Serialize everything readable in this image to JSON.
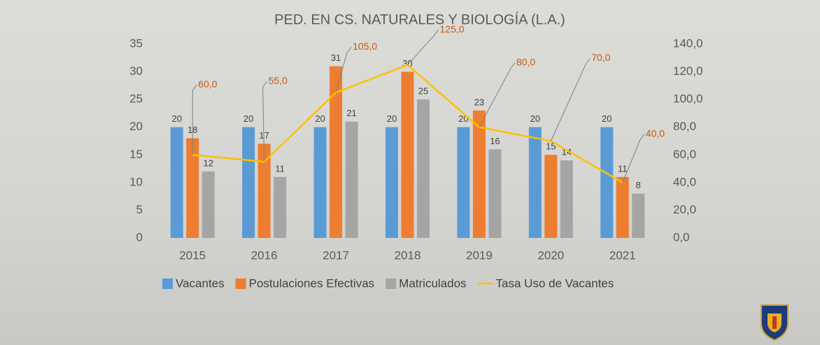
{
  "chart_data": {
    "type": "bar",
    "title": "PED. EN CS. NATURALES Y BIOLOGÍA (L.A.)",
    "categories": [
      "2015",
      "2016",
      "2017",
      "2018",
      "2019",
      "2020",
      "2021"
    ],
    "series": [
      {
        "name": "Vacantes",
        "color": "#5b9bd5",
        "values": [
          20,
          20,
          20,
          20,
          20,
          20,
          20
        ]
      },
      {
        "name": "Postulaciones Efectivas",
        "color": "#ed7d31",
        "values": [
          18,
          17,
          31,
          30,
          23,
          15,
          11
        ]
      },
      {
        "name": "Matriculados",
        "color": "#a5a5a5",
        "values": [
          12,
          11,
          21,
          25,
          16,
          14,
          8
        ]
      },
      {
        "name": "Tasa Uso de Vacantes",
        "color": "#ffc000",
        "type": "line",
        "axis": "y2",
        "values": [
          60,
          55,
          105,
          125,
          80,
          70,
          40
        ],
        "value_labels": [
          "60,0",
          "55,0",
          "105,0",
          "125,0",
          "80,0",
          "70,0",
          "40,0"
        ]
      }
    ],
    "ylim": [
      0,
      35
    ],
    "yticks": [
      0,
      5,
      10,
      15,
      20,
      25,
      30,
      35
    ],
    "y2lim": [
      0,
      140
    ],
    "y2ticks": [
      {
        "value": 0,
        "label": "0,0"
      },
      {
        "value": 20,
        "label": "20,0"
      },
      {
        "value": 40,
        "label": "40,0"
      },
      {
        "value": 60,
        "label": "60,0"
      },
      {
        "value": 80,
        "label": "80,0"
      },
      {
        "value": 100,
        "label": "100,0"
      },
      {
        "value": 120,
        "label": "120,0"
      },
      {
        "value": 140,
        "label": "140,0"
      }
    ],
    "grid": false,
    "legend": "bottom"
  }
}
